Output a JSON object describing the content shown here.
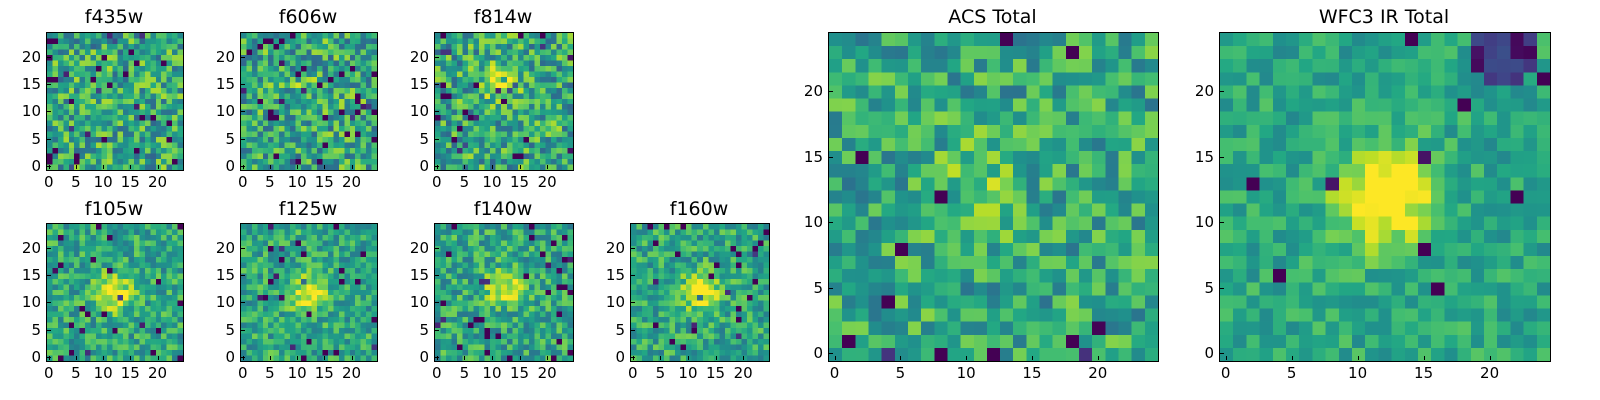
{
  "figure": {
    "colormap": "viridis",
    "grid_size": 25,
    "panels": [
      {
        "id": "f435w",
        "title": "f435w",
        "xticks": [
          "0",
          "5",
          "10",
          "15",
          "20"
        ],
        "yticks": [
          "0",
          "5",
          "10",
          "15",
          "20"
        ],
        "source_x": 11,
        "source_y": 14,
        "source_amp": 0.05,
        "noise": 0.55,
        "seed": 11
      },
      {
        "id": "f606w",
        "title": "f606w",
        "xticks": [
          "0",
          "5",
          "10",
          "15",
          "20"
        ],
        "yticks": [
          "0",
          "5",
          "10",
          "15",
          "20"
        ],
        "source_x": 11,
        "source_y": 14,
        "source_amp": 0.1,
        "noise": 0.55,
        "seed": 23
      },
      {
        "id": "f814w",
        "title": "f814w",
        "xticks": [
          "0",
          "5",
          "10",
          "15",
          "20"
        ],
        "yticks": [
          "0",
          "5",
          "10",
          "15",
          "20"
        ],
        "source_x": 11,
        "source_y": 15,
        "source_amp": 0.25,
        "noise": 0.55,
        "seed": 37
      },
      {
        "id": "f105w",
        "title": "f105w",
        "xticks": [
          "0",
          "5",
          "10",
          "15",
          "20"
        ],
        "yticks": [
          "0",
          "5",
          "10",
          "15",
          "20"
        ],
        "source_x": 12,
        "source_y": 12,
        "source_amp": 0.45,
        "noise": 0.4,
        "seed": 41
      },
      {
        "id": "f125w",
        "title": "f125w",
        "xticks": [
          "0",
          "5",
          "10",
          "15",
          "20"
        ],
        "yticks": [
          "0",
          "5",
          "10",
          "15",
          "20"
        ],
        "source_x": 12,
        "source_y": 12,
        "source_amp": 0.45,
        "noise": 0.4,
        "seed": 53
      },
      {
        "id": "f140w",
        "title": "f140w",
        "xticks": [
          "0",
          "5",
          "10",
          "15",
          "20"
        ],
        "yticks": [
          "0",
          "5",
          "10",
          "15",
          "20"
        ],
        "source_x": 12,
        "source_y": 13,
        "source_amp": 0.4,
        "noise": 0.42,
        "seed": 67
      },
      {
        "id": "f160w",
        "title": "f160w",
        "xticks": [
          "0",
          "5",
          "10",
          "15",
          "20"
        ],
        "yticks": [
          "0",
          "5",
          "10",
          "15",
          "20"
        ],
        "source_x": 12,
        "source_y": 12,
        "source_amp": 0.45,
        "noise": 0.4,
        "seed": 79
      },
      {
        "id": "acs-total",
        "title": "ACS Total",
        "xticks": [
          "0",
          "5",
          "10",
          "15",
          "20"
        ],
        "yticks": [
          "0",
          "5",
          "10",
          "15",
          "20"
        ],
        "source_x": 11,
        "source_y": 13,
        "source_amp": 0.15,
        "noise": 0.45,
        "seed": 97
      },
      {
        "id": "wfc3-ir-total",
        "title": "WFC3 IR Total",
        "xticks": [
          "0",
          "5",
          "10",
          "15",
          "20"
        ],
        "yticks": [
          "0",
          "5",
          "10",
          "15",
          "20"
        ],
        "source_x": 12,
        "source_y": 12,
        "source_amp": 0.55,
        "noise": 0.28,
        "seed": 131
      }
    ]
  }
}
